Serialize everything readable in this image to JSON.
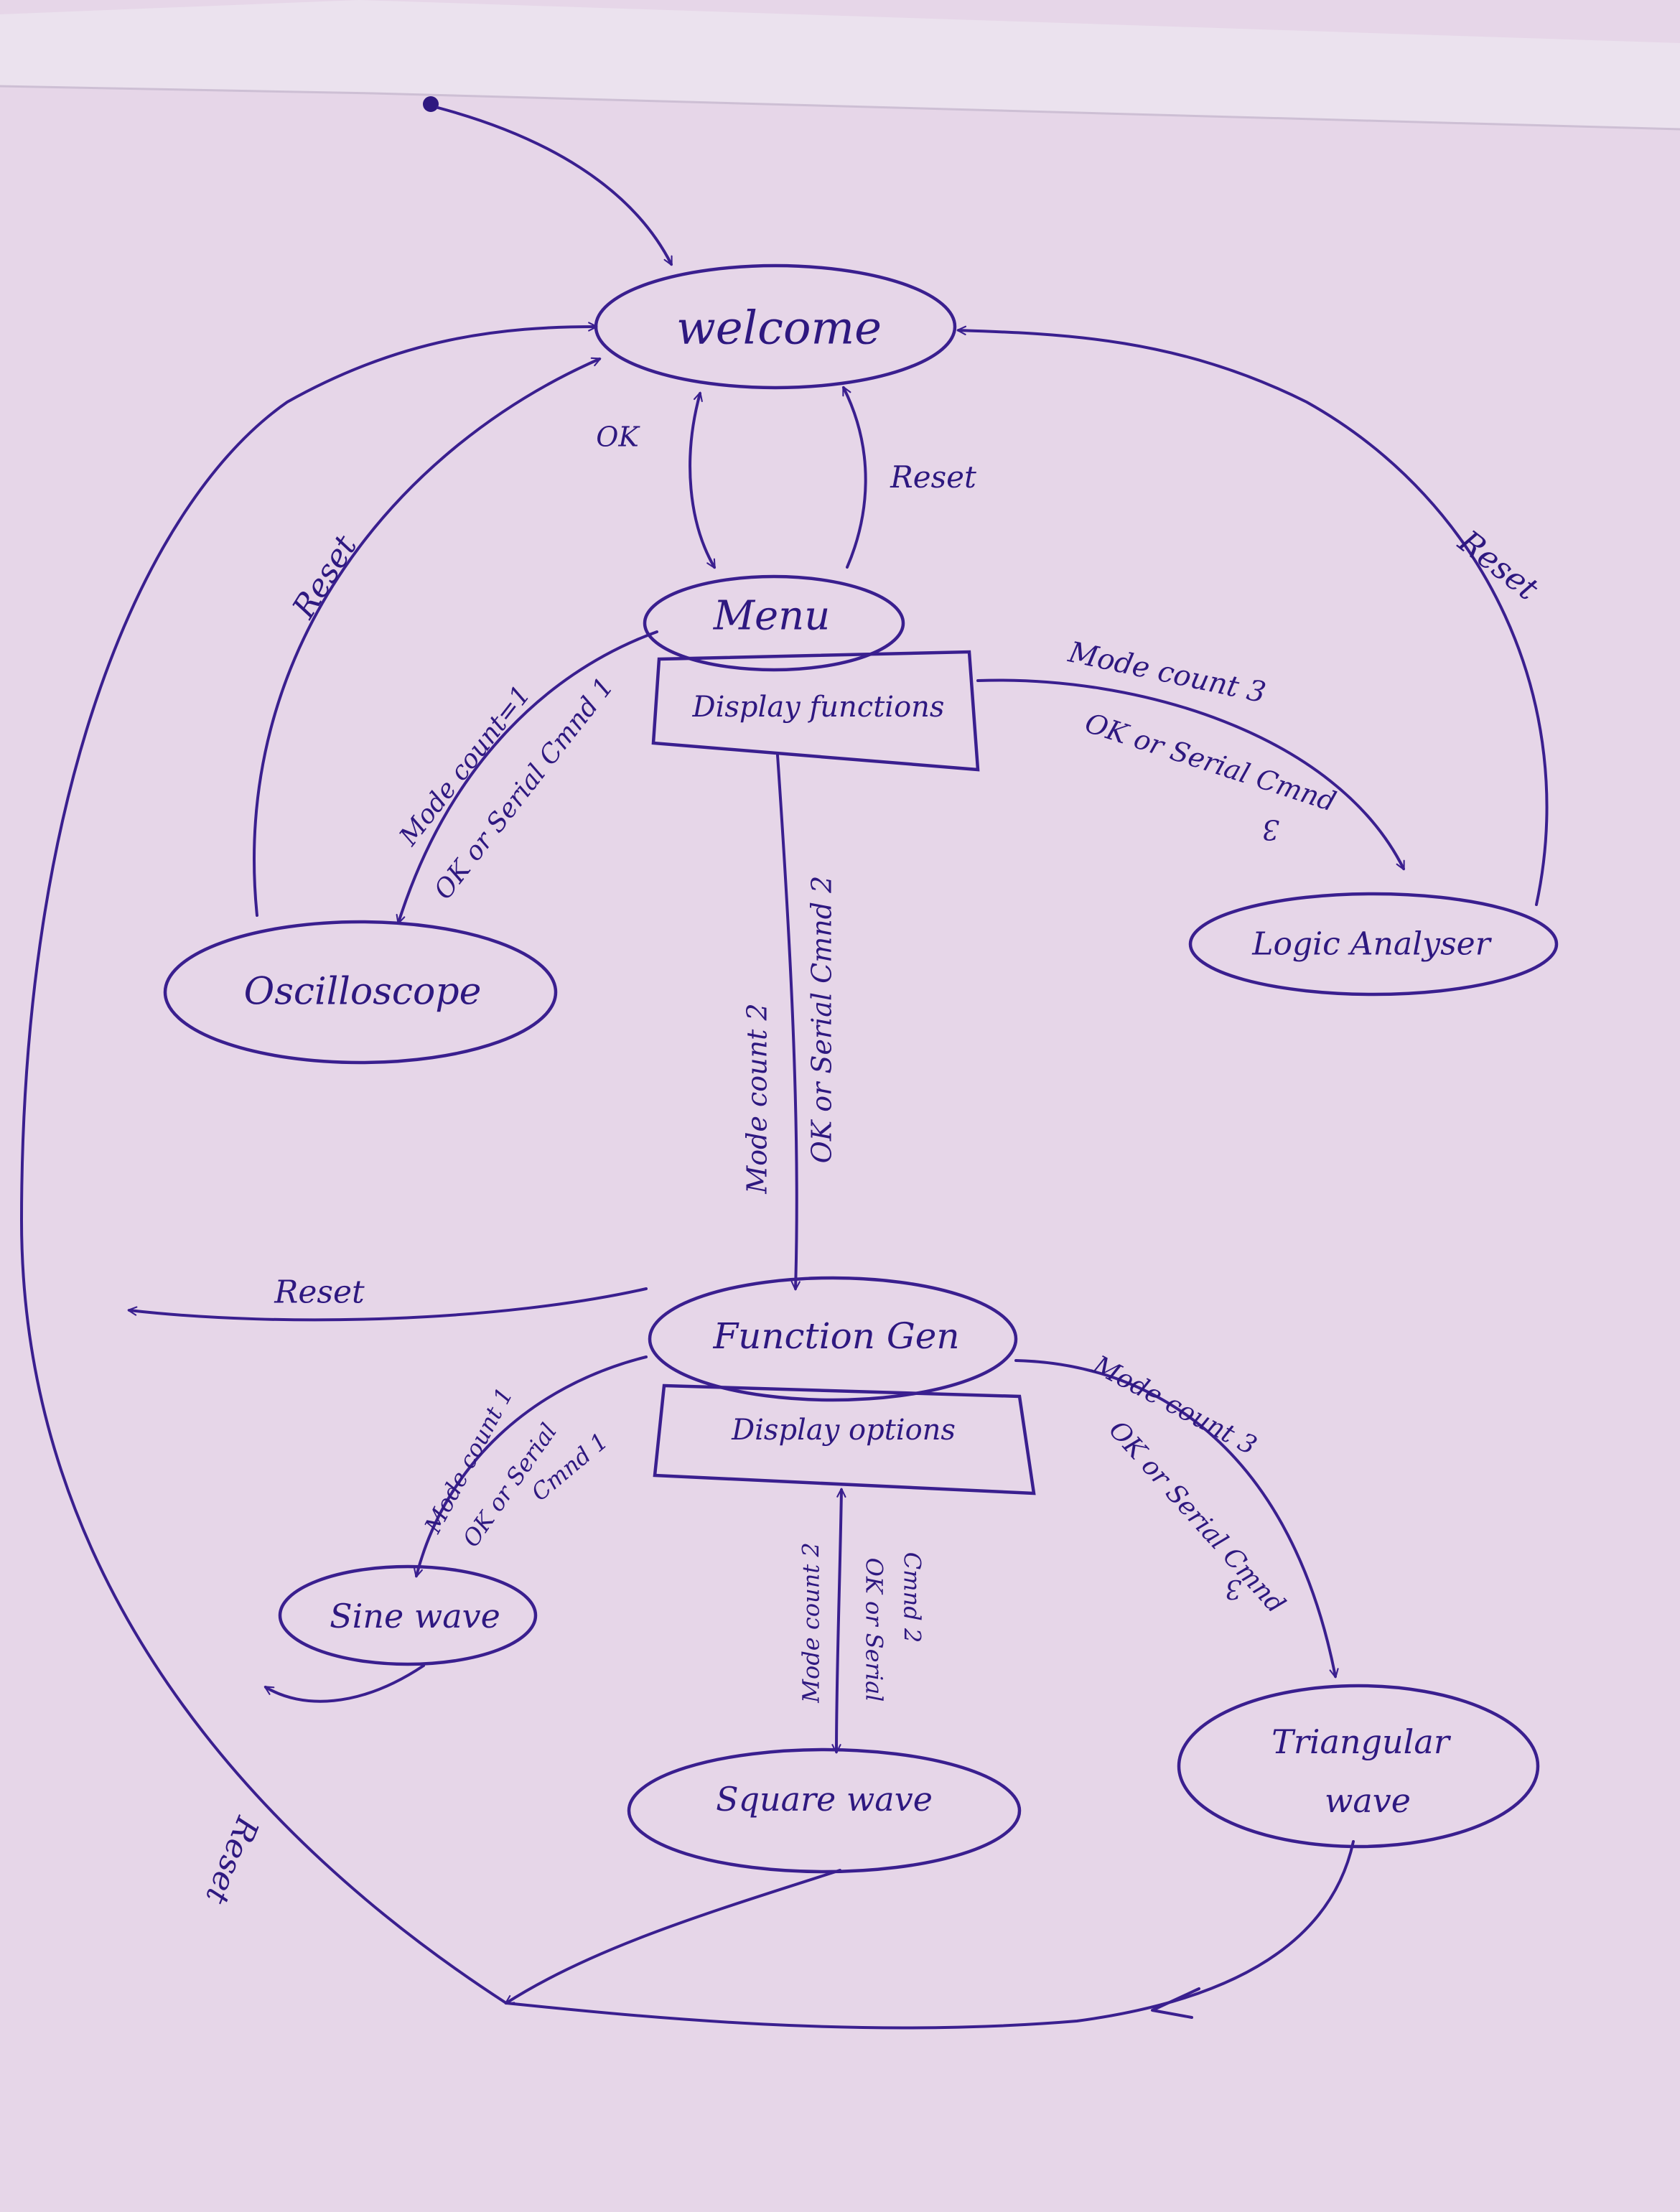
{
  "colors": {
    "paper": "#e6d6e8",
    "ink": "#3a1f8f",
    "ink_text": "#2e1880"
  },
  "nodes": {
    "welcome": "welcome",
    "menu": "Menu",
    "display_functions": "Display functions",
    "oscilloscope": "Oscilloscope",
    "logic_analyser": "Logic Analyser",
    "function_gen": "Function Gen",
    "display_options": "Display options",
    "sine_wave": "Sine wave",
    "square_wave": "Square wave",
    "triangular_wave_line1": "Triangular",
    "triangular_wave_line2": "wave"
  },
  "edges": {
    "welcome_to_menu": "OK",
    "menu_to_welcome": "Reset",
    "osc_reset": "Reset",
    "logic_reset": "Reset",
    "menu_to_osc_line1": "Mode count=1",
    "menu_to_osc_line2": "OK or Serial Cmnd 1",
    "menu_to_logic_line1": "Mode count 3",
    "menu_to_logic_line2": "OK or Serial Cmnd",
    "menu_to_logic_line3": "3",
    "menu_to_fg_line1": "Mode count 2",
    "menu_to_fg_line2": "OK or Serial Cmnd 2",
    "fg_reset": "Reset",
    "fg_to_sine_line1": "Mode count 1",
    "fg_to_sine_line2": "OK or Serial",
    "fg_to_sine_line3": "Cmnd 1",
    "fg_to_square_line1": "Mode count 2",
    "fg_to_square_line2": "OK or Serial",
    "fg_to_square_line3": "Cmnd 2",
    "fg_to_tri_line1": "Mode count 3",
    "fg_to_tri_line2": "OK or Serial Cmnd",
    "fg_to_tri_line3": "3",
    "waves_reset": "Reset"
  }
}
